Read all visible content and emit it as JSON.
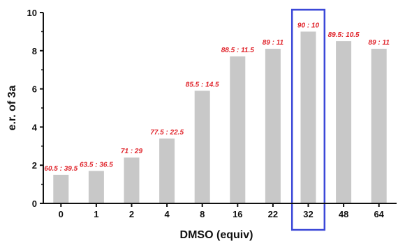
{
  "chart_data": {
    "type": "bar",
    "title": "",
    "xlabel": "DMSO (equiv)",
    "ylabel": "e.r. of 3a",
    "categories": [
      "0",
      "1",
      "2",
      "4",
      "8",
      "16",
      "22",
      "32",
      "48",
      "64"
    ],
    "values": [
      1.5,
      1.7,
      2.4,
      3.4,
      5.9,
      7.7,
      8.1,
      9.0,
      8.5,
      8.1
    ],
    "data_labels": [
      "60.5 : 39.5",
      "63.5 : 36.5",
      "71 : 29",
      "77.5 : 22.5",
      "85.5 : 14.5",
      "88.5 : 11.5",
      "89 : 11",
      "90 : 10",
      "89.5: 10.5",
      "89 : 11"
    ],
    "ylim": [
      0,
      10
    ],
    "yticks": [
      "0",
      "2",
      "4",
      "6",
      "8",
      "10"
    ],
    "highlighted_category": "32",
    "grid": false,
    "colors": {
      "bar": "#c8c8c8",
      "data_label": "#e0242b",
      "highlight_box": "#3b48d8",
      "axis": "#111111"
    }
  }
}
